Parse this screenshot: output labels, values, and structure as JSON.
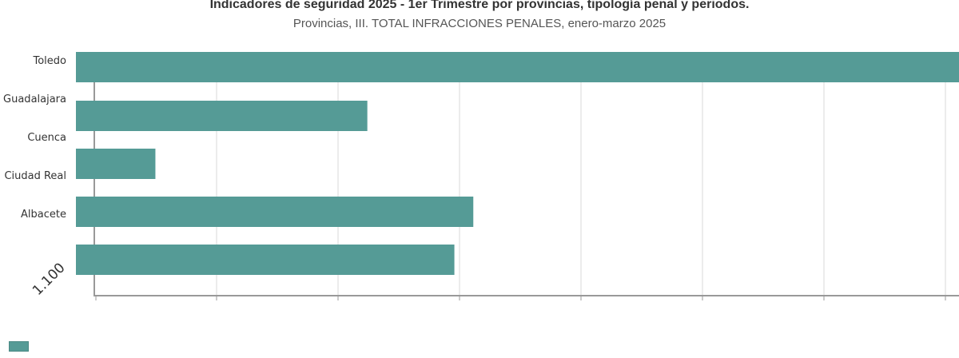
{
  "header": {
    "title": "Indicadores de seguridad 2025 - 1er Trimestre por provincias,  tipología penal y periodos.",
    "subtitle": "Provincias, III. TOTAL INFRACCIONES PENALES, enero-marzo 2025"
  },
  "colors": {
    "bar": "#559b96",
    "grid": "#d8d8d8",
    "axis": "#999999",
    "text": "#333333"
  },
  "chart_data": {
    "type": "bar",
    "orientation": "horizontal",
    "categories": [
      "Toledo",
      "Guadalajara",
      "Cuenca",
      "Ciudad Real",
      "Albacete",
      "1.100"
    ],
    "values": [
      7000,
      2310,
      0,
      630,
      3150,
      3000
    ],
    "title": "Indicadores de seguridad 2025 - 1er Trimestre por provincias,  tipología penal y periodos.",
    "subtitle": "Provincias, III. TOTAL INFRACCIONES PENALES, enero-marzo 2025",
    "xlim": [
      0,
      7000
    ],
    "grid": true,
    "legend": {
      "position": "bottom-left",
      "entries": [
        ""
      ]
    }
  }
}
